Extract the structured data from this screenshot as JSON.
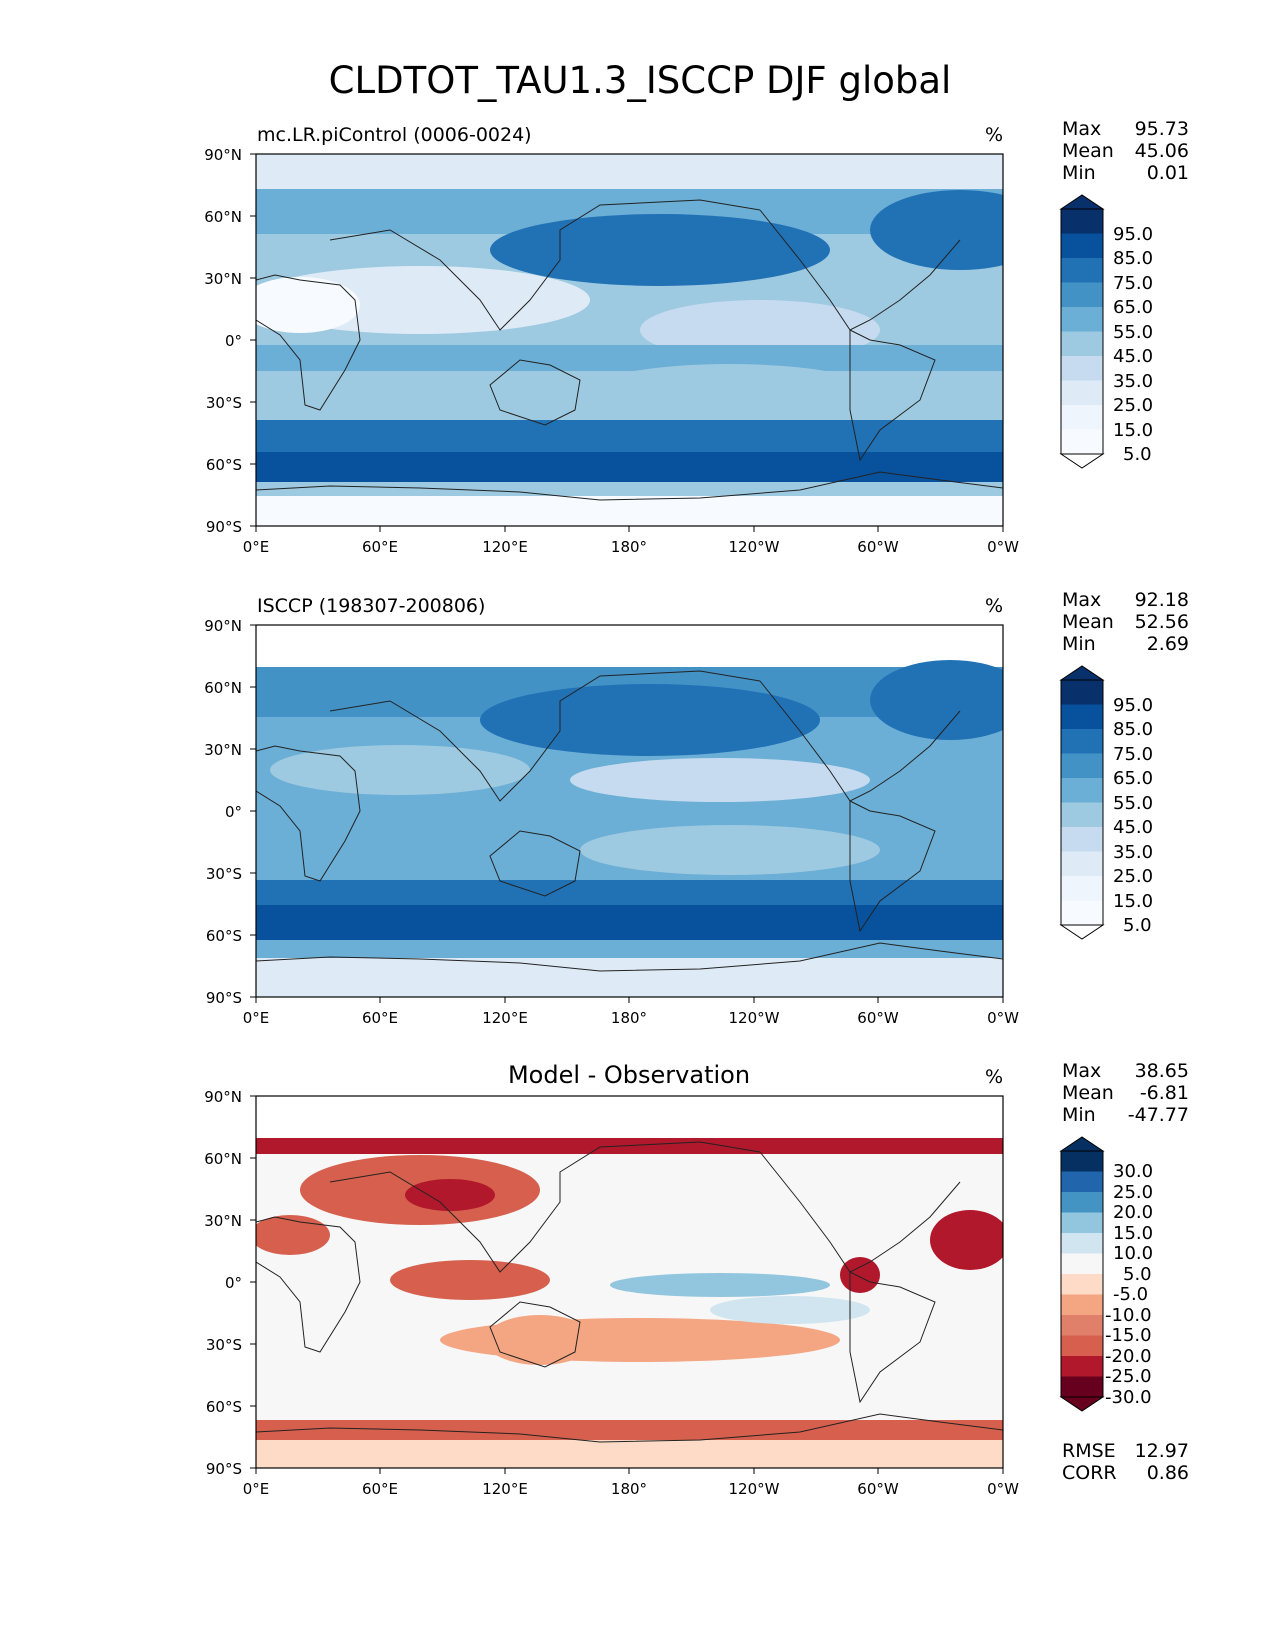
{
  "figure_title": "CLDTOT_TAU1.3_ISCCP DJF global",
  "x_ticks": [
    "0°E",
    "60°E",
    "120°E",
    "180°",
    "120°W",
    "60°W",
    "0°W"
  ],
  "y_ticks": [
    "90°N",
    "60°N",
    "30°N",
    "0°",
    "30°S",
    "60°S",
    "90°S"
  ],
  "stat_labels": {
    "max": "Max",
    "mean": "Mean",
    "min": "Min",
    "rmse": "RMSE",
    "corr": "CORR"
  },
  "colors": {
    "blues": [
      "#f7fbff",
      "#deebf7",
      "#c6dbef",
      "#9ecae1",
      "#6baed6",
      "#4292c6",
      "#2171b5",
      "#08519c",
      "#08306b"
    ],
    "diverging": [
      "#67001f",
      "#b2182b",
      "#d6604d",
      "#f4a582",
      "#fddbc7",
      "#f7f7f7",
      "#d1e5f0",
      "#92c5de",
      "#4393c3",
      "#2166ac",
      "#053061"
    ],
    "coast": "#222222"
  },
  "panels": [
    {
      "id": "model",
      "title": "mc.LR.piControl (0006-0024)",
      "title_center": "",
      "units": "%",
      "stats": {
        "max": "95.73",
        "mean": "45.06",
        "min": "0.01"
      },
      "colorbar_ticks": [
        "95.0",
        "85.0",
        "75.0",
        "65.0",
        "55.0",
        "45.0",
        "35.0",
        "25.0",
        "15.0",
        "5.0"
      ]
    },
    {
      "id": "obs",
      "title": "ISCCP (198307-200806)",
      "title_center": "",
      "units": "%",
      "stats": {
        "max": "92.18",
        "mean": "52.56",
        "min": "2.69"
      },
      "colorbar_ticks": [
        "95.0",
        "85.0",
        "75.0",
        "65.0",
        "55.0",
        "45.0",
        "35.0",
        "25.0",
        "15.0",
        "5.0"
      ]
    },
    {
      "id": "diff",
      "title": "",
      "title_center": "Model - Observation",
      "units": "%",
      "stats": {
        "max": "38.65",
        "mean": "-6.81",
        "min": "-47.77"
      },
      "extra_stats": {
        "rmse": "12.97",
        "corr": "0.86"
      },
      "colorbar_ticks": [
        "30.0",
        "25.0",
        "20.0",
        "15.0",
        "10.0",
        "5.0",
        "-5.0",
        "-10.0",
        "-15.0",
        "-20.0",
        "-25.0",
        "-30.0"
      ]
    }
  ],
  "chart_data": [
    {
      "type": "heatmap",
      "title": "mc.LR.piControl (0006-0024)",
      "units": "%",
      "x_range_deg": [
        0,
        360
      ],
      "y_range_deg": [
        -90,
        90
      ],
      "zonal_mean_profile": {
        "lat": [
          90,
          75,
          60,
          45,
          30,
          15,
          0,
          -15,
          -30,
          -45,
          -60,
          -75,
          -90
        ],
        "value": [
          5,
          45,
          55,
          40,
          20,
          30,
          40,
          35,
          35,
          70,
          85,
          10,
          3
        ]
      },
      "levels": [
        5,
        15,
        25,
        35,
        45,
        55,
        65,
        75,
        85,
        95
      ]
    },
    {
      "type": "heatmap",
      "title": "ISCCP (198307-200806)",
      "units": "%",
      "x_range_deg": [
        0,
        360
      ],
      "y_range_deg": [
        -90,
        90
      ],
      "zonal_mean_profile": {
        "lat": [
          90,
          75,
          60,
          45,
          30,
          15,
          0,
          -15,
          -30,
          -45,
          -60,
          -75,
          -90
        ],
        "value": [
          0,
          0,
          60,
          55,
          40,
          45,
          55,
          50,
          50,
          75,
          85,
          25,
          15
        ]
      },
      "levels": [
        5,
        15,
        25,
        35,
        45,
        55,
        65,
        75,
        85,
        95
      ]
    },
    {
      "type": "heatmap",
      "title": "Model - Observation",
      "units": "%",
      "x_range_deg": [
        0,
        360
      ],
      "y_range_deg": [
        -90,
        90
      ],
      "zonal_mean_profile": {
        "lat": [
          90,
          75,
          60,
          45,
          30,
          15,
          0,
          -15,
          -30,
          -45,
          -60,
          -75,
          -90
        ],
        "value": [
          0,
          0,
          -15,
          -10,
          -15,
          -10,
          -10,
          -10,
          -10,
          -3,
          -2,
          -15,
          -10
        ]
      },
      "levels": [
        -30,
        -25,
        -20,
        -15,
        -10,
        -5,
        5,
        10,
        15,
        20,
        25,
        30
      ]
    }
  ]
}
